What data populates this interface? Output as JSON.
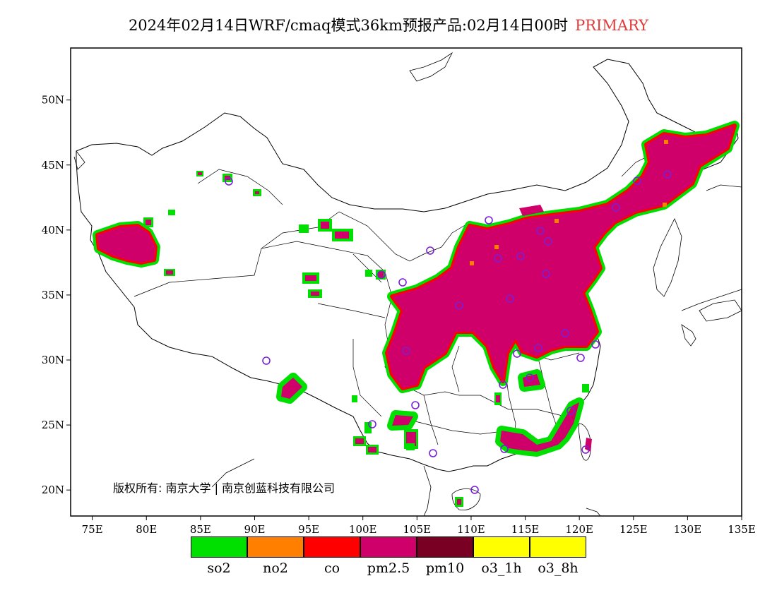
{
  "title": {
    "main": "2024年02月14日WRF/cmaq模式36km预报产品:02月14日00时",
    "tag": "PRIMARY",
    "tag_color": "#e03c3c"
  },
  "map": {
    "lon_range": [
      73,
      135
    ],
    "lat_range": [
      18,
      54
    ],
    "x_ticks": [
      "75E",
      "80E",
      "85E",
      "90E",
      "95E",
      "100E",
      "105E",
      "110E",
      "115E",
      "120E",
      "125E",
      "130E",
      "135E"
    ],
    "y_ticks": [
      "20N",
      "25N",
      "30N",
      "35N",
      "40N",
      "45N",
      "50N"
    ],
    "copyright": "版权所有: 南京大学 | 南京创蓝科技有限公司",
    "dominant_pollutant_color": "#d0006b",
    "station_marker_color": "#7a1fd6"
  },
  "legend": [
    {
      "label": "so2",
      "color": "#00e000"
    },
    {
      "label": "no2",
      "color": "#ff7f00"
    },
    {
      "label": "co",
      "color": "#ff0000"
    },
    {
      "label": "pm2.5",
      "color": "#d0006b"
    },
    {
      "label": "pm10",
      "color": "#7a0023"
    },
    {
      "label": "o3_1h",
      "color": "#ffff00"
    },
    {
      "label": "o3_8h",
      "color": "#ffff00"
    }
  ]
}
